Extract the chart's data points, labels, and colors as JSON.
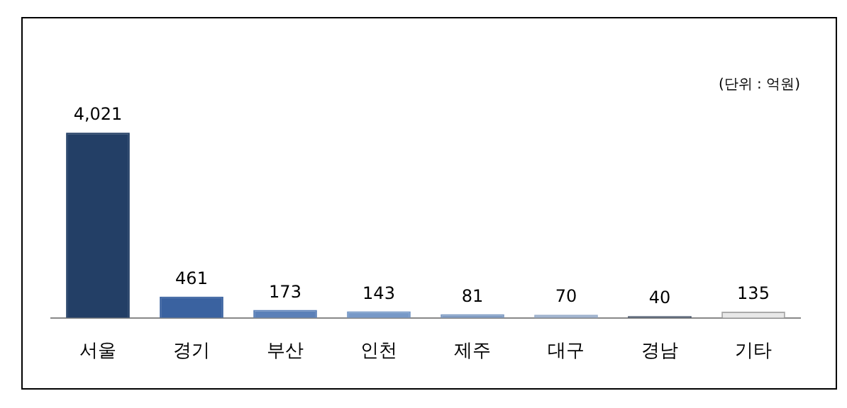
{
  "chart_data": {
    "type": "bar",
    "categories": [
      "서울",
      "경기",
      "부산",
      "인천",
      "제주",
      "대구",
      "경남",
      "기타"
    ],
    "values": [
      4021,
      461,
      173,
      143,
      81,
      70,
      40,
      135
    ],
    "colors": [
      "#233f66",
      "#3a62a0",
      "#5b80b8",
      "#7799c8",
      "#7f9cc4",
      "#9aafcc",
      "#3b4a60",
      "#e8e8e8"
    ],
    "value_labels": [
      "4,021",
      "461",
      "173",
      "143",
      "81",
      "70",
      "40",
      "135"
    ],
    "annotations": [
      "(단위 : 억원)"
    ]
  }
}
